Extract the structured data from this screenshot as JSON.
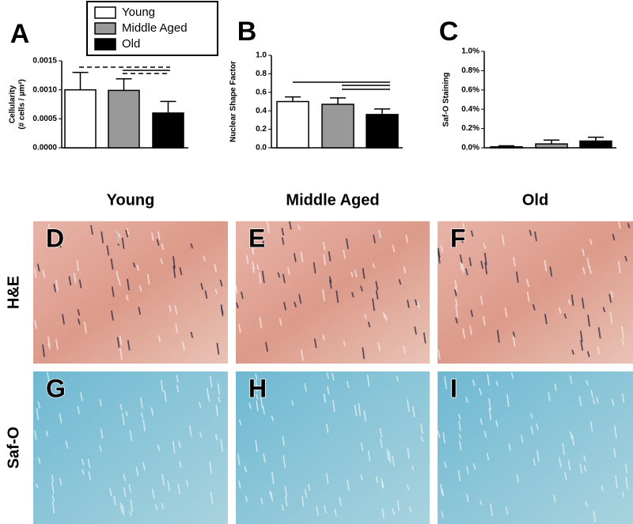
{
  "chart_data": [
    {
      "type": "bar",
      "panel": "A",
      "y_label": [
        "Cellularity",
        "(# cells / µm²)"
      ],
      "legend": [
        "Young",
        "Middle Aged",
        "Old"
      ],
      "colors": [
        "#ffffff",
        "#999999",
        "#000000"
      ],
      "values": [
        0.001,
        0.00099,
        0.0006
      ],
      "errors": [
        0.0003,
        0.0002,
        0.0002
      ],
      "ylim": [
        0,
        0.0015
      ],
      "yticks": [
        {
          "value": 0,
          "label": "0.0000"
        },
        {
          "value": 0.0005,
          "label": "0.0005"
        },
        {
          "value": 0.001,
          "label": "0.0010"
        },
        {
          "value": 0.0015,
          "label": "0.0015"
        }
      ]
    },
    {
      "type": "bar",
      "panel": "B",
      "y_label": [
        "Nuclear Shape Factor"
      ],
      "colors": [
        "#ffffff",
        "#999999",
        "#000000"
      ],
      "values": [
        0.5,
        0.47,
        0.36
      ],
      "errors": [
        0.05,
        0.07,
        0.06
      ],
      "ylim": [
        0,
        1
      ],
      "yticks": [
        {
          "value": 0,
          "label": "0.0"
        },
        0.2,
        0.4,
        0.6,
        0.8,
        {
          "value": 1,
          "label": "1.0"
        }
      ]
    },
    {
      "type": "bar",
      "panel": "C",
      "y_label": [
        "Saf-O Staining"
      ],
      "colors": [
        "#ffffff",
        "#999999",
        "#000000"
      ],
      "values": [
        0.01,
        0.04,
        0.07
      ],
      "errors": [
        0.01,
        0.04,
        0.04
      ],
      "ylim": [
        0,
        1
      ],
      "yticks": [
        {
          "value": 0,
          "label": "0.0%"
        },
        {
          "value": 0.2,
          "label": "0.2%"
        },
        {
          "value": 0.4,
          "label": "0.4%"
        },
        {
          "value": 0.6,
          "label": "0.6%"
        },
        {
          "value": 0.8,
          "label": "0.8%"
        },
        {
          "value": 1,
          "label": "1.0%"
        }
      ]
    }
  ],
  "columns": [
    "Young",
    "Middle Aged",
    "Old"
  ],
  "rows": [
    "H&E",
    "Saf-O"
  ],
  "image_panels": [
    "D",
    "E",
    "F",
    "G",
    "H",
    "I"
  ]
}
